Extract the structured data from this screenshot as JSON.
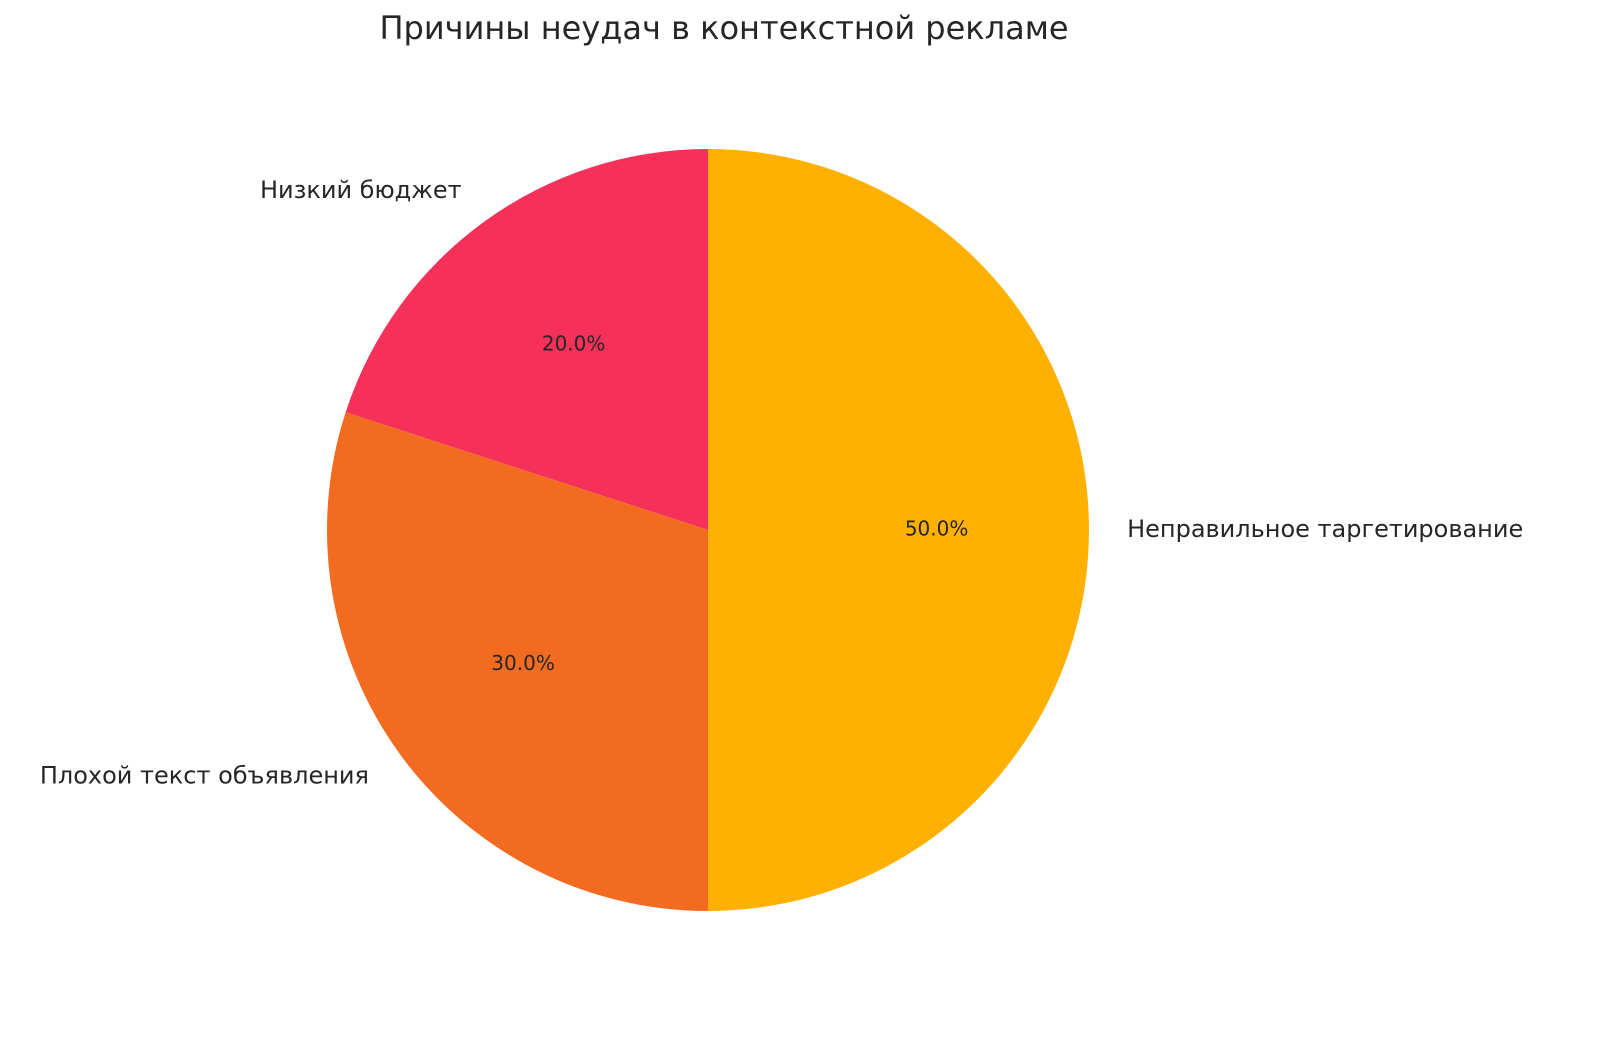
{
  "chart_data": {
    "type": "pie",
    "title": "Причины неудач в контекстной рекламе",
    "categories": [
      "Низкий бюджет",
      "Плохой текст объявления",
      "Неправильное таргетирование"
    ],
    "values": [
      20,
      30,
      50
    ],
    "value_labels": [
      "20.0%",
      "30.0%",
      "50.0%"
    ],
    "colors": [
      "#f5315a",
      "#f26b21",
      "#ffb000"
    ]
  }
}
